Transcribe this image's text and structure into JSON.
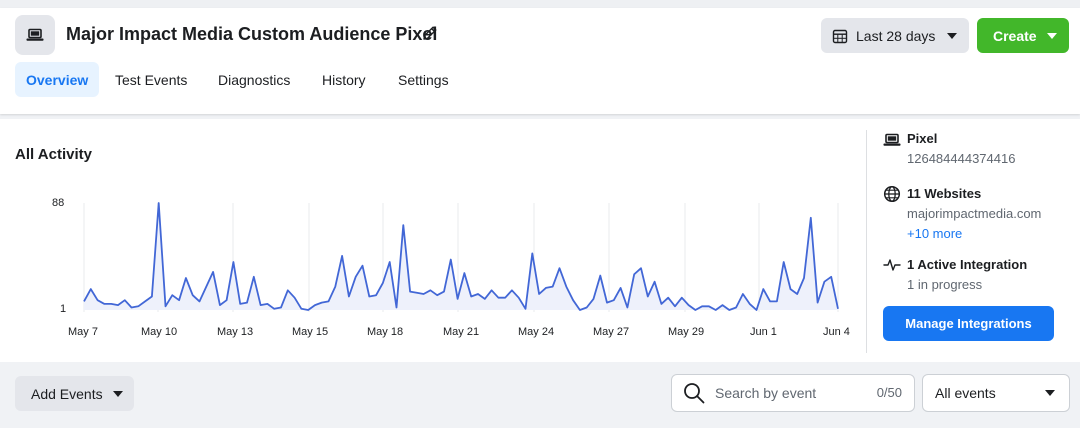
{
  "header": {
    "title": "Major Impact Media Custom Audience Pixel",
    "pixel_icon": "laptop-icon",
    "edit_icon": "pencil-icon",
    "date_range": {
      "label": "Last 28 days",
      "icon": "calendar-icon"
    },
    "create_button": {
      "label": "Create"
    }
  },
  "tabs": [
    {
      "label": "Overview",
      "active": true
    },
    {
      "label": "Test Events",
      "active": false
    },
    {
      "label": "Diagnostics",
      "active": false
    },
    {
      "label": "History",
      "active": false
    },
    {
      "label": "Settings",
      "active": false
    }
  ],
  "activity": {
    "title": "All Activity"
  },
  "chart_data": {
    "type": "area",
    "title": "All Activity",
    "xlabel": "",
    "ylabel": "",
    "ylim": [
      1,
      88
    ],
    "y_ticks": [
      "88",
      "1"
    ],
    "x_tick_labels": [
      "May 7",
      "May 10",
      "May 13",
      "May 15",
      "May 18",
      "May 21",
      "May 24",
      "May 27",
      "May 29",
      "Jun 1",
      "Jun 4"
    ],
    "series": [
      {
        "values": [
          8,
          18,
          9,
          6,
          6,
          5,
          9,
          3,
          4,
          8,
          12,
          88,
          4,
          13,
          9,
          27,
          13,
          8,
          20,
          32,
          5,
          9,
          40,
          6,
          7,
          28,
          5,
          6,
          2,
          3,
          17,
          11,
          2,
          1,
          5,
          7,
          8,
          20,
          45,
          12,
          28,
          37,
          12,
          13,
          23,
          40,
          3,
          70,
          16,
          15,
          14,
          17,
          13,
          16,
          42,
          10,
          31,
          12,
          14,
          10,
          17,
          11,
          11,
          17,
          11,
          2,
          47,
          14,
          19,
          20,
          35,
          20,
          9,
          1,
          3,
          10,
          29,
          7,
          9,
          19,
          3,
          30,
          35,
          12,
          24,
          6,
          11,
          4,
          11,
          5,
          1,
          4,
          4,
          1,
          5,
          1,
          3,
          14,
          6,
          1,
          18,
          8,
          8,
          40,
          18,
          14,
          27,
          76,
          7,
          24,
          28,
          2
        ]
      }
    ],
    "color": "#4267d6",
    "fill_color": "#eef1fb",
    "grid": true
  },
  "sidebar": {
    "pixel": {
      "title": "Pixel",
      "id": "126484444374416",
      "icon": "laptop-icon"
    },
    "websites": {
      "title": "11 Websites",
      "domain": "majorimpactmedia.com",
      "more_link": "+10 more",
      "icon": "globe-icon"
    },
    "integrations": {
      "title": "1 Active Integration",
      "status": "1 in progress",
      "icon": "activity-icon"
    },
    "manage_button": {
      "label": "Manage Integrations"
    }
  },
  "footer": {
    "add_events": {
      "label": "Add Events"
    },
    "search": {
      "placeholder": "Search by event",
      "count": "0/50",
      "icon": "search-icon"
    },
    "filter_select": {
      "label": "All events"
    }
  },
  "colors": {
    "accent": "#1877f2",
    "create_green": "#42b72a",
    "line": "#4267d6"
  }
}
